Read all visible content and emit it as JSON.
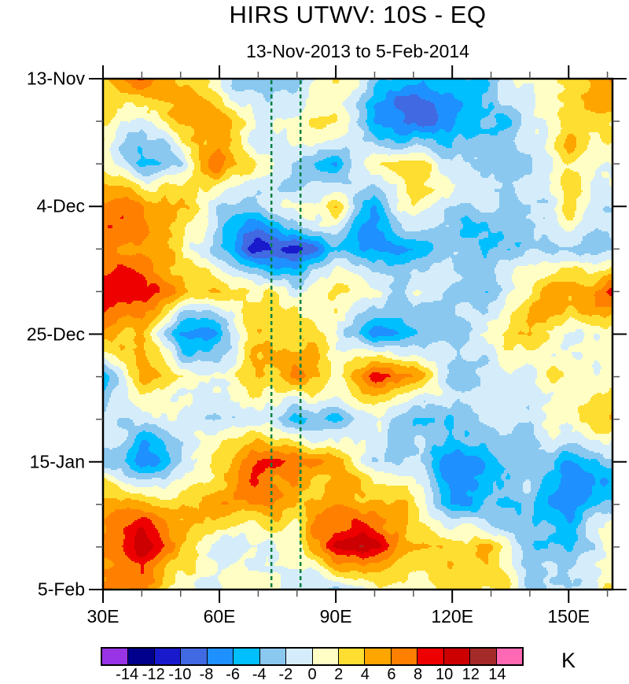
{
  "title": "HIRS UTWV: 10S - EQ",
  "subtitle": "13-Nov-2013 to 5-Feb-2014",
  "chart_data": {
    "type": "heatmap",
    "description": "Hovmoller (time-longitude) filled contour plot of HIRS upper-tropospheric water vapor anomaly (K), averaged 10S-EQ",
    "x_axis": {
      "range_deg": [
        30,
        161.3
      ],
      "major_ticks": [
        {
          "lon": 30,
          "label": "30E"
        },
        {
          "lon": 60,
          "label": "60E"
        },
        {
          "lon": 90,
          "label": "90E"
        },
        {
          "lon": 120,
          "label": "120E"
        },
        {
          "lon": 150,
          "label": "150E"
        }
      ],
      "minor_tick_lons": [
        40,
        50,
        70,
        80,
        100,
        110,
        130,
        140,
        160
      ]
    },
    "y_axis": {
      "range_days": [
        0,
        84
      ],
      "orientation": "time increases downward",
      "major_ticks": [
        {
          "day": 0,
          "label": "13-Nov"
        },
        {
          "day": 21,
          "label": "4-Dec"
        },
        {
          "day": 42,
          "label": "25-Dec"
        },
        {
          "day": 63,
          "label": "15-Jan"
        },
        {
          "day": 84,
          "label": "5-Feb"
        }
      ],
      "minor_tick_days": [
        7,
        14,
        28,
        35,
        49,
        56,
        70,
        77
      ]
    },
    "reference_lines": {
      "style": "dashed",
      "color": "#008040",
      "longitudes": [
        73.4,
        80.9
      ]
    },
    "colorbar": {
      "units": "K",
      "levels": [
        -14,
        -12,
        -10,
        -8,
        -6,
        -4,
        -2,
        0,
        2,
        4,
        6,
        8,
        10,
        12,
        14
      ],
      "level_labels": [
        "-14",
        "-12",
        "-10",
        "-8",
        "-6",
        "-4",
        "-2",
        "0",
        "2",
        "4",
        "6",
        "8",
        "10",
        "12",
        "14"
      ],
      "colors": [
        "#9933E6",
        "#00008C",
        "#1A1ACD",
        "#4169E1",
        "#1E90FF",
        "#00BFFF",
        "#8AC8F0",
        "#D5EDFA",
        "#FFFFC5",
        "#FFDE32",
        "#FFA500",
        "#FF8000",
        "#EE0000",
        "#CC0000",
        "#A52A2A",
        "#FF69B4"
      ]
    },
    "grid": {
      "comment": "approximate anomaly values (K) read from the contour field; rows = days since 13-Nov-2013 (step 7), cols = longitude 30E-160E (step 10)",
      "lons": [
        30,
        40,
        50,
        60,
        70,
        80,
        90,
        100,
        110,
        120,
        130,
        140,
        150,
        160
      ],
      "days": [
        0,
        7,
        14,
        21,
        28,
        35,
        42,
        49,
        56,
        63,
        70,
        77,
        84
      ],
      "values_K": [
        [
          6,
          9,
          4,
          1,
          -2,
          -3,
          1,
          -3,
          -4,
          -5,
          -4,
          1,
          5,
          6
        ],
        [
          2,
          -1,
          6,
          6,
          -2,
          -1,
          2,
          -6,
          -7,
          -9,
          -6,
          -2,
          4,
          3
        ],
        [
          0,
          -5,
          -4,
          6,
          0,
          -2,
          -6,
          2,
          3,
          -3,
          -4,
          -2,
          4,
          1
        ],
        [
          7,
          8,
          4,
          -4,
          -2,
          1,
          4,
          -5,
          2,
          -1,
          -2,
          -3,
          2,
          -2
        ],
        [
          5,
          7,
          2,
          -5,
          -10,
          -12,
          -5,
          -6,
          -4,
          -2,
          -3,
          -1,
          -3,
          -4
        ],
        [
          8,
          6,
          4,
          3,
          0,
          -1,
          1,
          -1,
          1,
          -5,
          -5,
          2,
          5,
          7
        ],
        [
          4,
          2,
          -8,
          -5,
          1,
          2,
          1,
          -6,
          -2,
          -1,
          3,
          5,
          0,
          -2
        ],
        [
          -4,
          5,
          2,
          3,
          4,
          6,
          3,
          9,
          5,
          -2,
          -3,
          -1,
          2,
          4
        ],
        [
          -2,
          -3,
          -1,
          -2,
          -2,
          -3,
          -4,
          -2,
          -4,
          -3,
          -2,
          -4,
          0,
          2
        ],
        [
          -4,
          -8,
          -2,
          3,
          7,
          9,
          4,
          -2,
          -3,
          -6,
          -5,
          -3,
          -6,
          -3
        ],
        [
          4,
          6,
          5,
          7,
          7,
          4,
          6,
          5,
          2,
          -5,
          -5,
          -3,
          -7,
          -3
        ],
        [
          7,
          11,
          5,
          0,
          1,
          2,
          9,
          10,
          4,
          4,
          4,
          -2,
          -3,
          -1
        ],
        [
          7,
          6,
          -3,
          -2,
          0,
          1,
          -2,
          0,
          2,
          3,
          1,
          -2,
          1,
          2
        ]
      ]
    }
  }
}
